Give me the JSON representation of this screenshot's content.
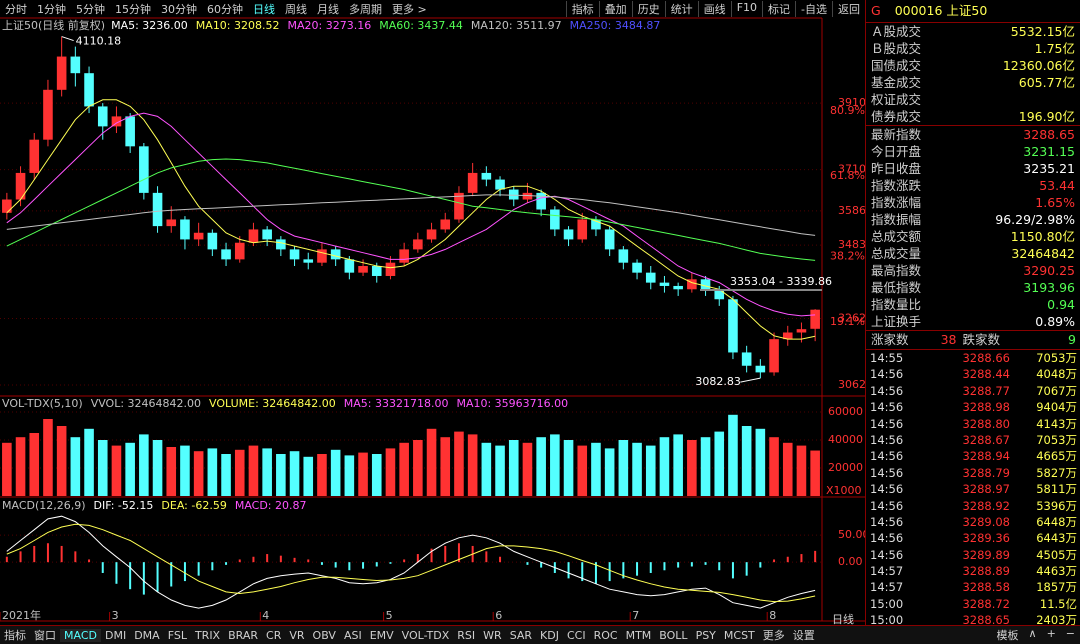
{
  "toolbar": {
    "periods": [
      "分时",
      "1分钟",
      "5分钟",
      "15分钟",
      "30分钟",
      "60分钟",
      "日线",
      "周线",
      "月线",
      "多周期",
      "更多 >"
    ],
    "active": 6,
    "tools": [
      "指标",
      "叠加",
      "历史",
      "统计",
      "画线",
      "F10",
      "标记",
      "-自选",
      "返回"
    ]
  },
  "bottom_bar": {
    "items": [
      "指标",
      "窗口",
      "MACD",
      "DMI",
      "DMA",
      "FSL",
      "TRIX",
      "BRAR",
      "CR",
      "VR",
      "OBV",
      "ASI",
      "EMV",
      "VOL-TDX",
      "RSI",
      "WR",
      "SAR",
      "KDJ",
      "CCI",
      "ROC",
      "MTM",
      "BOLL",
      "PSY",
      "MCST",
      "更多",
      "设置"
    ],
    "active": 2,
    "right": [
      "模板",
      "∧",
      "+",
      "−"
    ]
  },
  "chart_data": {
    "type": "candlestick",
    "title": "上证50(日线 前复权)",
    "ma_legend": [
      {
        "label": "MA5: 3236.00",
        "color": "#ffffff"
      },
      {
        "label": "MA10: 3208.52",
        "color": "#ffff54"
      },
      {
        "label": "MA20: 3273.16",
        "color": "#ff54ff"
      },
      {
        "label": "MA60: 3437.44",
        "color": "#54ff54"
      },
      {
        "label": "MA120: 3511.97",
        "color": "#c0c0c0"
      },
      {
        "label": "MA250: 3484.87",
        "color": "#5050ff"
      }
    ],
    "categories": [
      "2021年",
      null,
      null,
      null,
      null,
      null,
      null,
      null,
      "3",
      null,
      null,
      null,
      null,
      null,
      null,
      null,
      null,
      null,
      null,
      "4",
      null,
      null,
      null,
      null,
      null,
      null,
      null,
      null,
      "5",
      null,
      null,
      null,
      null,
      null,
      null,
      null,
      "6",
      null,
      null,
      null,
      null,
      null,
      null,
      null,
      null,
      null,
      "7",
      null,
      null,
      null,
      null,
      null,
      null,
      null,
      null,
      null,
      "8",
      null,
      null,
      null
    ],
    "candles": [
      [
        3580,
        3640,
        3560,
        3620
      ],
      [
        3620,
        3720,
        3600,
        3700
      ],
      [
        3700,
        3820,
        3680,
        3800
      ],
      [
        3800,
        3980,
        3780,
        3950
      ],
      [
        3950,
        4110.18,
        3930,
        4050
      ],
      [
        4050,
        4080,
        3960,
        4000
      ],
      [
        4000,
        4020,
        3880,
        3900
      ],
      [
        3900,
        3910,
        3800,
        3840
      ],
      [
        3840,
        3900,
        3820,
        3870
      ],
      [
        3870,
        3880,
        3760,
        3780
      ],
      [
        3780,
        3790,
        3620,
        3640
      ],
      [
        3640,
        3660,
        3520,
        3540
      ],
      [
        3540,
        3600,
        3520,
        3560
      ],
      [
        3560,
        3570,
        3470,
        3500
      ],
      [
        3500,
        3550,
        3480,
        3520
      ],
      [
        3520,
        3530,
        3450,
        3470
      ],
      [
        3470,
        3490,
        3420,
        3440
      ],
      [
        3440,
        3510,
        3430,
        3490
      ],
      [
        3490,
        3550,
        3480,
        3530
      ],
      [
        3530,
        3540,
        3480,
        3500
      ],
      [
        3500,
        3510,
        3450,
        3470
      ],
      [
        3470,
        3480,
        3420,
        3440
      ],
      [
        3440,
        3460,
        3410,
        3430
      ],
      [
        3430,
        3490,
        3420,
        3470
      ],
      [
        3470,
        3480,
        3420,
        3440
      ],
      [
        3440,
        3450,
        3380,
        3400
      ],
      [
        3400,
        3440,
        3390,
        3420
      ],
      [
        3420,
        3430,
        3370,
        3390
      ],
      [
        3390,
        3450,
        3380,
        3430
      ],
      [
        3430,
        3490,
        3420,
        3470
      ],
      [
        3470,
        3520,
        3460,
        3500
      ],
      [
        3500,
        3550,
        3490,
        3530
      ],
      [
        3530,
        3580,
        3520,
        3560
      ],
      [
        3560,
        3660,
        3550,
        3640
      ],
      [
        3640,
        3730,
        3630,
        3700
      ],
      [
        3700,
        3720,
        3660,
        3680
      ],
      [
        3680,
        3690,
        3630,
        3650
      ],
      [
        3650,
        3660,
        3600,
        3620
      ],
      [
        3620,
        3670,
        3610,
        3640
      ],
      [
        3640,
        3650,
        3570,
        3590
      ],
      [
        3590,
        3600,
        3510,
        3530
      ],
      [
        3530,
        3540,
        3480,
        3500
      ],
      [
        3500,
        3580,
        3490,
        3560
      ],
      [
        3560,
        3570,
        3510,
        3530
      ],
      [
        3530,
        3540,
        3450,
        3470
      ],
      [
        3470,
        3480,
        3410,
        3430
      ],
      [
        3430,
        3440,
        3380,
        3400
      ],
      [
        3400,
        3420,
        3350,
        3370
      ],
      [
        3370,
        3390,
        3340,
        3360
      ],
      [
        3360,
        3370,
        3330,
        3350
      ],
      [
        3350,
        3400,
        3340,
        3380
      ],
      [
        3380,
        3390,
        3330,
        3350
      ],
      [
        3350,
        3360,
        3300,
        3320
      ],
      [
        3320,
        3330,
        3140,
        3160
      ],
      [
        3160,
        3180,
        3100,
        3120
      ],
      [
        3120,
        3140,
        3082.83,
        3100
      ],
      [
        3100,
        3220,
        3090,
        3200
      ],
      [
        3200,
        3240,
        3180,
        3220
      ],
      [
        3220,
        3250,
        3190,
        3230
      ],
      [
        3231.15,
        3290.25,
        3193.96,
        3288.65
      ]
    ],
    "up_color": "#ff3232",
    "down_color": "#54ffff",
    "high_index": 4,
    "low_index": 55,
    "range_label": "3353.04 - 3339.86",
    "ma_lines": [
      {
        "color": "#ffff54",
        "values": [
          3580,
          3620,
          3680,
          3740,
          3800,
          3860,
          3900,
          3920,
          3920,
          3900,
          3860,
          3800,
          3730,
          3660,
          3600,
          3560,
          3520,
          3500,
          3490,
          3495,
          3490,
          3480,
          3470,
          3460,
          3450,
          3440,
          3430,
          3420,
          3415,
          3420,
          3440,
          3470,
          3500,
          3540,
          3580,
          3620,
          3650,
          3660,
          3660,
          3645,
          3620,
          3590,
          3570,
          3555,
          3540,
          3510,
          3480,
          3450,
          3420,
          3390,
          3370,
          3360,
          3350,
          3320,
          3280,
          3240,
          3210,
          3200,
          3200,
          3209
        ]
      },
      {
        "color": "#ff54ff",
        "values": [
          3550,
          3580,
          3620,
          3660,
          3700,
          3740,
          3780,
          3820,
          3850,
          3870,
          3880,
          3870,
          3840,
          3800,
          3760,
          3720,
          3680,
          3640,
          3600,
          3560,
          3530,
          3510,
          3500,
          3490,
          3480,
          3470,
          3460,
          3450,
          3440,
          3440,
          3445,
          3455,
          3470,
          3490,
          3510,
          3530,
          3560,
          3590,
          3610,
          3625,
          3630,
          3620,
          3600,
          3580,
          3560,
          3540,
          3510,
          3480,
          3450,
          3420,
          3400,
          3385,
          3370,
          3345,
          3320,
          3300,
          3285,
          3275,
          3270,
          3273
        ]
      },
      {
        "color": "#54ff54",
        "values": [
          3480,
          3500,
          3520,
          3540,
          3560,
          3580,
          3600,
          3620,
          3640,
          3660,
          3680,
          3700,
          3715,
          3725,
          3735,
          3740,
          3742,
          3740,
          3735,
          3730,
          3722,
          3714,
          3706,
          3698,
          3690,
          3682,
          3674,
          3666,
          3658,
          3650,
          3640,
          3630,
          3620,
          3610,
          3600,
          3595,
          3590,
          3585,
          3580,
          3576,
          3572,
          3568,
          3564,
          3560,
          3552,
          3544,
          3536,
          3528,
          3520,
          3512,
          3504,
          3496,
          3488,
          3478,
          3468,
          3458,
          3452,
          3446,
          3441,
          3437
        ]
      },
      {
        "color": "#c0c0c0",
        "values": [
          3530,
          3535,
          3540,
          3545,
          3550,
          3555,
          3560,
          3565,
          3570,
          3575,
          3580,
          3585,
          3588,
          3590,
          3592,
          3594,
          3596,
          3598,
          3600,
          3602,
          3604,
          3606,
          3608,
          3610,
          3612,
          3614,
          3616,
          3618,
          3620,
          3622,
          3624,
          3626,
          3628,
          3630,
          3632,
          3634,
          3634,
          3633,
          3632,
          3630,
          3628,
          3624,
          3620,
          3615,
          3610,
          3604,
          3598,
          3592,
          3586,
          3580,
          3573,
          3566,
          3559,
          3552,
          3545,
          3538,
          3531,
          3524,
          3517,
          3512
        ]
      }
    ],
    "ylim": [
      3032,
      4166
    ],
    "yticks": [
      3910,
      3710,
      3586,
      3483,
      3262,
      3062
    ],
    "fib_levels": [
      {
        "value": 80.9,
        "label": "80.9%"
      },
      {
        "value": 61.8,
        "label": "61.8%"
      },
      {
        "value": 38.2,
        "label": "38.2%"
      },
      {
        "value": 19.1,
        "label": "19.1%"
      }
    ],
    "volume": {
      "legend": [
        {
          "label": "VOL-TDX(5,10)",
          "color": "#c0c0c0"
        },
        {
          "label": "VVOL: 32464842.00",
          "color": "#c0c0c0"
        },
        {
          "label": "VOLUME: 32464842.00",
          "color": "#ffff54"
        },
        {
          "label": "MA5: 33321718.00",
          "color": "#ff54ff"
        },
        {
          "label": "MA10: 35963716.00",
          "color": "#ff54ff"
        }
      ],
      "values": [
        38000,
        42000,
        45000,
        55000,
        50000,
        42000,
        48000,
        40000,
        36000,
        38000,
        44000,
        40000,
        35000,
        36000,
        32000,
        34000,
        30000,
        33000,
        36000,
        34000,
        30000,
        32000,
        28000,
        30000,
        33000,
        29000,
        31000,
        30000,
        34000,
        38000,
        40000,
        48000,
        42000,
        46000,
        44000,
        38000,
        36000,
        40000,
        38000,
        42000,
        44000,
        40000,
        36000,
        38000,
        34000,
        40000,
        38000,
        36000,
        42000,
        44000,
        40000,
        42000,
        46000,
        58000,
        50000,
        48000,
        42000,
        38000,
        36000,
        32464.842
      ],
      "ylim": [
        0,
        70000
      ],
      "yticks": [
        60000,
        40000,
        20000
      ],
      "unit_label": "X1000"
    },
    "macd": {
      "legend": [
        {
          "label": "MACD(12,26,9)",
          "color": "#c0c0c0"
        },
        {
          "label": "DIF: -52.15",
          "color": "#ffffff"
        },
        {
          "label": "DEA: -62.59",
          "color": "#ffff54"
        },
        {
          "label": "MACD: 20.87",
          "color": "#ff54ff"
        }
      ],
      "hist": [
        10,
        20,
        30,
        35,
        30,
        20,
        5,
        -20,
        -40,
        -50,
        -60,
        -55,
        -45,
        -35,
        -25,
        -15,
        -5,
        5,
        10,
        15,
        12,
        8,
        5,
        -5,
        -10,
        -15,
        -12,
        -8,
        -3,
        5,
        15,
        25,
        30,
        35,
        30,
        20,
        10,
        0,
        -5,
        -10,
        -20,
        -30,
        -35,
        -40,
        -35,
        -30,
        -25,
        -20,
        -15,
        -10,
        -8,
        -5,
        -15,
        -30,
        -25,
        -10,
        5,
        10,
        15,
        20.87
      ],
      "dif": [
        20,
        40,
        60,
        80,
        85,
        75,
        55,
        30,
        10,
        -10,
        -35,
        -55,
        -70,
        -80,
        -85,
        -80,
        -70,
        -55,
        -40,
        -30,
        -25,
        -22,
        -20,
        -25,
        -30,
        -38,
        -40,
        -38,
        -32,
        -20,
        0,
        20,
        35,
        45,
        50,
        45,
        35,
        20,
        10,
        0,
        -10,
        -20,
        -30,
        -40,
        -50,
        -55,
        -60,
        -62,
        -60,
        -55,
        -50,
        -48,
        -60,
        -75,
        -80,
        -85,
        -75,
        -65,
        -58,
        -52.15
      ],
      "dea": [
        15,
        25,
        40,
        55,
        65,
        70,
        68,
        60,
        50,
        40,
        25,
        10,
        -5,
        -20,
        -35,
        -45,
        -55,
        -58,
        -55,
        -50,
        -45,
        -38,
        -32,
        -28,
        -28,
        -30,
        -32,
        -34,
        -33,
        -30,
        -25,
        -15,
        -5,
        5,
        15,
        25,
        30,
        30,
        28,
        25,
        20,
        12,
        3,
        -5,
        -15,
        -25,
        -33,
        -40,
        -46,
        -50,
        -52,
        -54,
        -56,
        -60,
        -65,
        -70,
        -73,
        -72,
        -68,
        -62.59
      ],
      "ylim": [
        -107,
        115
      ],
      "yticks": [
        {
          "value": 50,
          "label": "50.00"
        },
        {
          "value": 0,
          "label": "0.00"
        }
      ]
    }
  },
  "quote_panel": {
    "flag": "G",
    "code": "000016",
    "name": "上证50",
    "rows": [
      {
        "label": "Ａ股成交",
        "value": "5532.15亿",
        "color": "#ffff54"
      },
      {
        "label": "Ｂ股成交",
        "value": "1.75亿",
        "color": "#ffff54"
      },
      {
        "label": "国债成交",
        "value": "12360.06亿",
        "color": "#ffff54"
      },
      {
        "label": "基金成交",
        "value": "605.77亿",
        "color": "#ffff54"
      },
      {
        "label": "权证成交"
      },
      {
        "label": "债券成交",
        "value": "196.90亿",
        "color": "#ffff54"
      },
      {
        "label": "最新指数",
        "value": "3288.65",
        "color": "#ff3232"
      },
      {
        "label": "今日开盘",
        "value": "3231.15",
        "color": "#54ff54"
      },
      {
        "label": "昨日收盘",
        "value": "3235.21",
        "color": "#ffffff"
      },
      {
        "label": "指数涨跌",
        "value": "53.44",
        "color": "#ff3232"
      },
      {
        "label": "指数涨幅",
        "value": "1.65%",
        "color": "#ff3232"
      },
      {
        "label": "指数振幅",
        "value": "96.29/2.98%",
        "color": "#ffffff"
      },
      {
        "label": "总成交额",
        "value": "1150.80亿",
        "color": "#ffff54"
      },
      {
        "label": "总成交量",
        "value": "32464842",
        "color": "#ffff54"
      },
      {
        "label": "最高指数",
        "value": "3290.25",
        "color": "#ff3232"
      },
      {
        "label": "最低指数",
        "value": "3193.96",
        "color": "#54ff54"
      },
      {
        "label": "指数量比",
        "value": "0.94",
        "color": "#54ff54"
      },
      {
        "label": "上证换手",
        "value": "0.89%",
        "color": "#ffffff"
      }
    ],
    "breadth": {
      "up_label": "涨家数",
      "up": 38,
      "down_label": "跌家数",
      "down": 9
    },
    "trades": [
      [
        "14:55",
        "3288.66",
        "7053万"
      ],
      [
        "14:56",
        "3288.44",
        "4048万"
      ],
      [
        "14:56",
        "3288.77",
        "7067万"
      ],
      [
        "14:56",
        "3288.98",
        "9404万"
      ],
      [
        "14:56",
        "3288.80",
        "4143万"
      ],
      [
        "14:56",
        "3288.67",
        "7053万"
      ],
      [
        "14:56",
        "3288.94",
        "4665万"
      ],
      [
        "14:56",
        "3288.79",
        "5827万"
      ],
      [
        "14:56",
        "3288.97",
        "5811万"
      ],
      [
        "14:56",
        "3288.92",
        "5396万"
      ],
      [
        "14:56",
        "3289.08",
        "6448万"
      ],
      [
        "14:56",
        "3289.36",
        "6443万"
      ],
      [
        "14:56",
        "3289.89",
        "4505万"
      ],
      [
        "14:57",
        "3288.89",
        "4463万"
      ],
      [
        "14:57",
        "3288.58",
        "1857万"
      ],
      [
        "15:00",
        "3288.72",
        "11.5亿"
      ],
      [
        "15:00",
        "3288.65",
        "2403万"
      ]
    ],
    "period_tab": "日线"
  }
}
